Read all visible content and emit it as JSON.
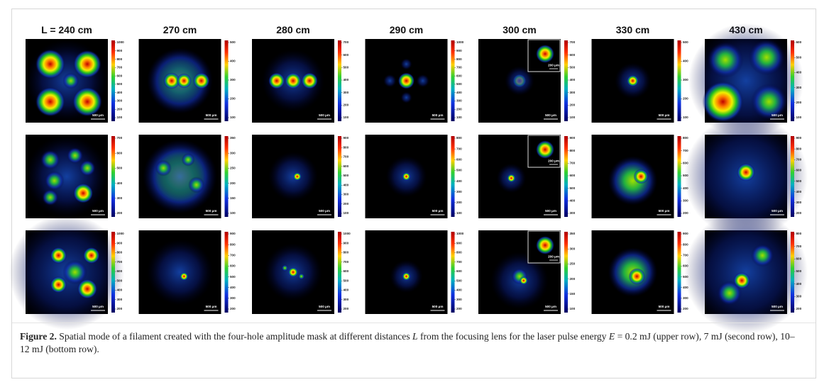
{
  "figure": {
    "columns": [
      "L = 240 cm",
      "270 cm",
      "280 cm",
      "290 cm",
      "300 cm",
      "330 cm",
      "430 cm"
    ],
    "rows": [
      {
        "panels": [
          {
            "colorbar_ticks": [
              1000,
              900,
              800,
              700,
              600,
              500,
              400,
              300,
              200,
              100
            ],
            "scale_bar": "500 μm"
          },
          {
            "colorbar_ticks": [
              500,
              400,
              300,
              200,
              100
            ],
            "scale_bar": "500 μm"
          },
          {
            "colorbar_ticks": [
              700,
              600,
              500,
              400,
              300,
              200,
              100
            ],
            "scale_bar": "500 μm"
          },
          {
            "colorbar_ticks": [
              1000,
              900,
              800,
              700,
              600,
              500,
              400,
              300,
              200,
              100
            ],
            "scale_bar": "500 μm"
          },
          {
            "colorbar_ticks": [
              700,
              600,
              500,
              400,
              300,
              200,
              100
            ],
            "scale_bar": "500 μm",
            "inset_scale_bar": "200 μm"
          },
          {
            "colorbar_ticks": [
              500,
              400,
              300,
              200,
              100
            ],
            "scale_bar": "500 μm"
          },
          {
            "colorbar_ticks": [
              600,
              500,
              400,
              300,
              200,
              100
            ],
            "scale_bar": "500 μm"
          }
        ]
      },
      {
        "panels": [
          {
            "colorbar_ticks": [
              700,
              600,
              500,
              400,
              300,
              200
            ],
            "scale_bar": "500 μm"
          },
          {
            "colorbar_ticks": [
              350,
              300,
              250,
              200,
              150,
              100
            ],
            "scale_bar": "500 μm"
          },
          {
            "colorbar_ticks": [
              900,
              800,
              700,
              600,
              500,
              400,
              300,
              200,
              100
            ],
            "scale_bar": "500 μm"
          },
          {
            "colorbar_ticks": [
              800,
              700,
              600,
              500,
              400,
              300,
              200,
              100
            ],
            "scale_bar": "500 μm"
          },
          {
            "colorbar_ticks": [
              900,
              800,
              700,
              600,
              500,
              400,
              300
            ],
            "scale_bar": "500 μm",
            "inset_scale_bar": "200 μm"
          },
          {
            "colorbar_ticks": [
              800,
              700,
              600,
              500,
              400,
              300,
              200
            ],
            "scale_bar": "500 μm"
          },
          {
            "colorbar_ticks": [
              900,
              800,
              700,
              600,
              500,
              400,
              300,
              200
            ],
            "scale_bar": "500 μm"
          }
        ]
      },
      {
        "panels": [
          {
            "colorbar_ticks": [
              1000,
              900,
              800,
              700,
              600,
              500,
              400,
              300,
              200
            ],
            "scale_bar": "500 μm"
          },
          {
            "colorbar_ticks": [
              900,
              800,
              700,
              600,
              500,
              400,
              300,
              200
            ],
            "scale_bar": "500 μm"
          },
          {
            "colorbar_ticks": [
              1000,
              900,
              800,
              700,
              600,
              500,
              400,
              300,
              200
            ],
            "scale_bar": "500 μm"
          },
          {
            "colorbar_ticks": [
              1000,
              900,
              800,
              700,
              600,
              500,
              400,
              300,
              200
            ],
            "scale_bar": "500 μm"
          },
          {
            "colorbar_ticks": [
              350,
              300,
              250,
              200,
              150,
              100
            ],
            "scale_bar": "500 μm",
            "inset_scale_bar": "200 μm"
          },
          {
            "colorbar_ticks": [
              900,
              800,
              700,
              600,
              500,
              400,
              300,
              200
            ],
            "scale_bar": "500 μm"
          },
          {
            "colorbar_ticks": [
              800,
              700,
              600,
              500,
              400,
              300,
              200
            ],
            "scale_bar": "500 μm"
          }
        ]
      }
    ],
    "caption": {
      "label": "Figure 2.",
      "parts": [
        "Spatial mode of a filament created with the four-hole amplitude mask at different distances ",
        "L",
        " from the focusing lens for the laser pulse energy ",
        "E",
        " = 0.2 mJ (upper row), 7 mJ (second row), 10–12 mJ (bottom row)."
      ]
    }
  }
}
